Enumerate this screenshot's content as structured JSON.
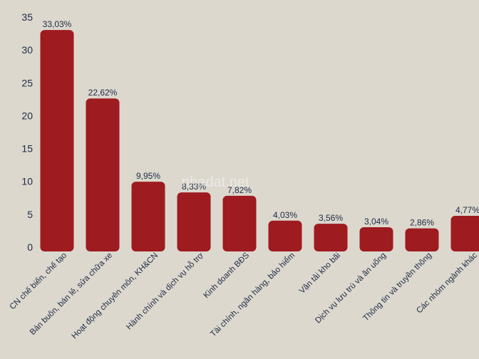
{
  "watermark": "nhadat.net",
  "chart_data": {
    "type": "bar",
    "title": "",
    "xlabel": "",
    "ylabel": "",
    "ylim": [
      0,
      35
    ],
    "yticks": [
      0,
      5,
      10,
      15,
      20,
      25,
      30,
      35
    ],
    "grid": false,
    "colors": {
      "bar": "#9e1b20",
      "text": "#1f2a44",
      "background": "#dcd8ce"
    },
    "categories": [
      "CN chế biến, chế tạo",
      "Bán buôn, bán lẻ, sửa chữa xe",
      "Hoạt động chuyên môn, KH&CN",
      "Hành chính và dịch vụ hỗ trợ",
      "Kinh doanh BĐS",
      "Tài chính, ngân hàng, bảo hiểm",
      "Vận tải kho bãi",
      "Dịch vụ lưu trú và ăn uống",
      "Thông tin và truyền thông",
      "Các nhóm ngành khác"
    ],
    "values": [
      33.03,
      22.62,
      9.95,
      8.33,
      7.82,
      4.03,
      3.56,
      3.04,
      2.86,
      4.77
    ],
    "value_labels": [
      "33,03%",
      "22,62%",
      "9,95%",
      "8,33%",
      "7,82%",
      "4,03%",
      "3,56%",
      "3,04%",
      "2,86%",
      "4,77%"
    ]
  }
}
